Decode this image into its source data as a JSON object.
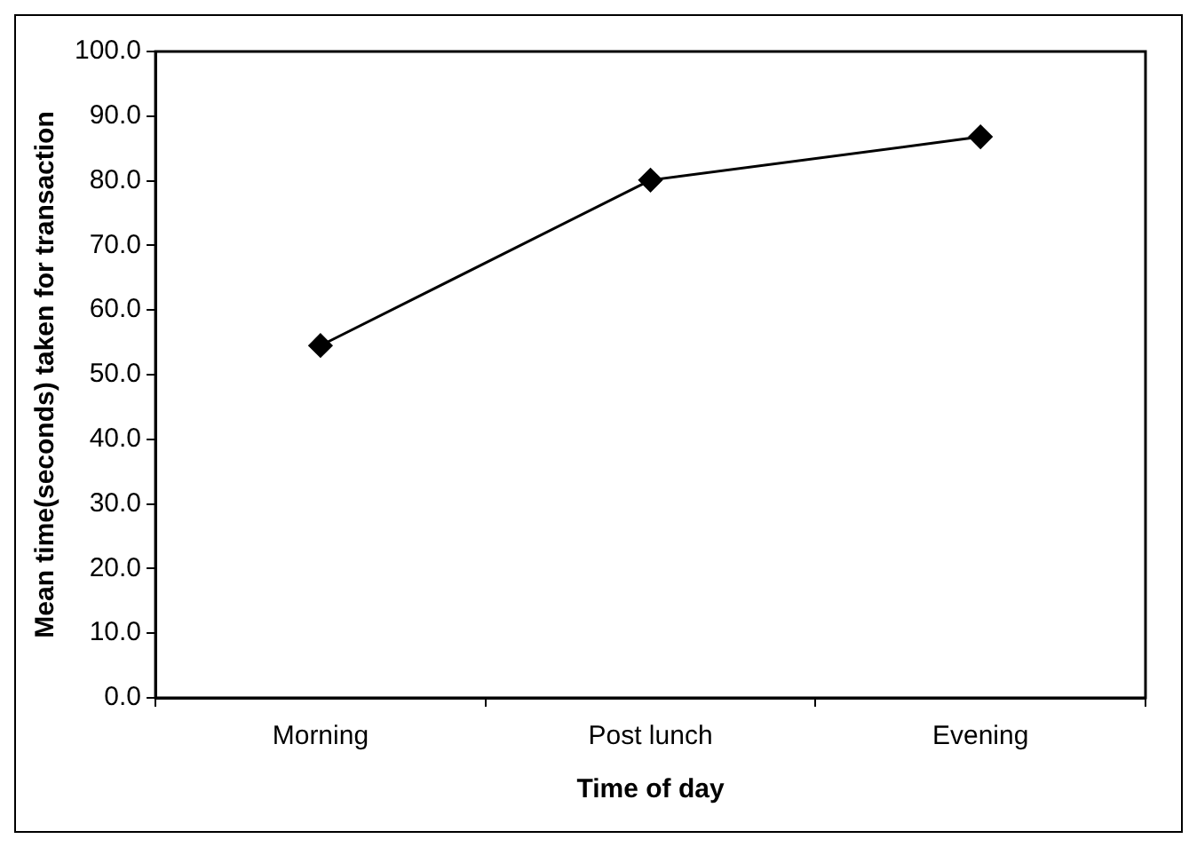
{
  "chart_data": {
    "type": "line",
    "xlabel": "Time of day",
    "ylabel": "Mean time(seconds) taken for transaction",
    "categories": [
      "Morning",
      "Post lunch",
      "Evening"
    ],
    "series": [
      {
        "color": "#000000",
        "values": [
          54.5,
          80.1,
          86.8
        ]
      }
    ],
    "ylim": [
      0,
      100
    ],
    "yticks": [
      {
        "value": 0,
        "label": "0.0"
      },
      {
        "value": 10,
        "label": "10.0"
      },
      {
        "value": 20,
        "label": "20.0"
      },
      {
        "value": 30,
        "label": "30.0"
      },
      {
        "value": 40,
        "label": "40.0"
      },
      {
        "value": 50,
        "label": "50.0"
      },
      {
        "value": 60,
        "label": "60.0"
      },
      {
        "value": 70,
        "label": "70.0"
      },
      {
        "value": 80,
        "label": "80.0"
      },
      {
        "value": 90,
        "label": "90.0"
      },
      {
        "value": 100,
        "label": "100.0"
      }
    ],
    "grid": false,
    "legend": false,
    "marker": "diamond",
    "line_style": "solid"
  }
}
